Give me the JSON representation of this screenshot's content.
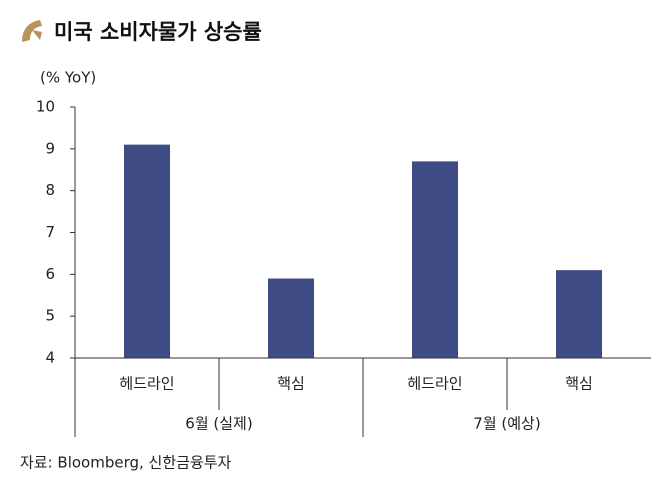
{
  "chart_data": {
    "type": "bar",
    "title": "미국 소비자물가 상승률",
    "y_axis_label": "(% YoY)",
    "categories": [
      "헤드라인",
      "핵심",
      "헤드라인",
      "핵심"
    ],
    "groups": [
      "6월 (실제)",
      "7월 (예상)"
    ],
    "values": [
      9.1,
      5.9,
      8.7,
      6.1
    ],
    "color": "#3f4b85",
    "ylim": [
      4,
      10
    ],
    "yticks": [
      4,
      5,
      6,
      7,
      8,
      9,
      10
    ],
    "grid": false,
    "source": "자료: Bloomberg, 신한금융투자"
  }
}
